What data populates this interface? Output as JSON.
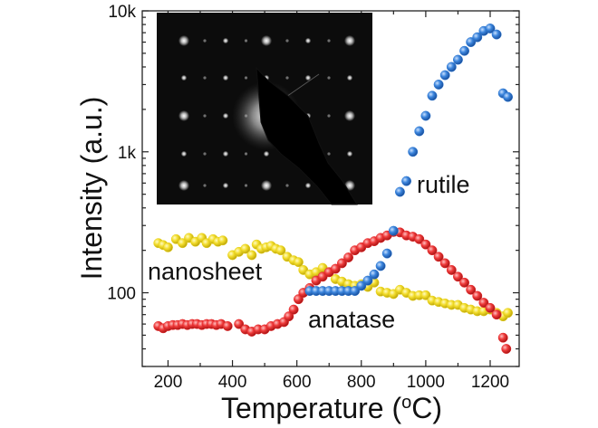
{
  "chart_data": {
    "type": "scatter",
    "title": "",
    "xlabel": "Temperature (",
    "xlabel_sup": "o",
    "xlabel_end": "C)",
    "ylabel": "Intensity (a.u.)",
    "yscale": "log",
    "xlim": [
      120,
      1290
    ],
    "ylim": [
      30,
      10000
    ],
    "x_ticks": [
      200,
      400,
      600,
      800,
      1000,
      1200
    ],
    "x_tick_labels": [
      "200",
      "400",
      "600",
      "800",
      "1000",
      "1200"
    ],
    "y_ticks": [
      100,
      1000,
      10000
    ],
    "y_tick_labels": [
      "100",
      "1k",
      "10k"
    ],
    "grid": false,
    "inset": "electron diffraction pattern (dark square, bright spot lattice)",
    "series": [
      {
        "name": "nanosheet",
        "color": "#e8d21c",
        "x": [
          170,
          185,
          200,
          225,
          245,
          265,
          285,
          305,
          320,
          340,
          355,
          370,
          400,
          420,
          440,
          460,
          475,
          490,
          505,
          520,
          535,
          550,
          570,
          590,
          605,
          620,
          640,
          660,
          680,
          700,
          720,
          740,
          760,
          780,
          800,
          820,
          840,
          860,
          880,
          900,
          920,
          940,
          960,
          980,
          1000,
          1020,
          1040,
          1060,
          1080,
          1100,
          1120,
          1140,
          1160,
          1180,
          1200,
          1220,
          1240,
          1255
        ],
        "y": [
          225,
          218,
          210,
          240,
          225,
          245,
          230,
          245,
          225,
          240,
          230,
          235,
          185,
          195,
          205,
          185,
          220,
          205,
          210,
          215,
          205,
          200,
          180,
          170,
          165,
          145,
          135,
          140,
          150,
          140,
          125,
          120,
          115,
          112,
          115,
          110,
          118,
          102,
          100,
          98,
          105,
          100,
          95,
          96,
          96,
          88,
          86,
          84,
          82,
          82,
          78,
          76,
          74,
          74,
          76,
          72,
          68,
          72
        ]
      },
      {
        "name": "anatase",
        "color": "#e8282a",
        "x": [
          170,
          185,
          200,
          215,
          230,
          245,
          260,
          275,
          290,
          305,
          320,
          335,
          350,
          365,
          385,
          420,
          440,
          460,
          480,
          500,
          520,
          540,
          560,
          575,
          590,
          605,
          620,
          640,
          660,
          680,
          700,
          720,
          740,
          760,
          780,
          800,
          820,
          840,
          860,
          880,
          900,
          920,
          940,
          960,
          980,
          1000,
          1020,
          1040,
          1060,
          1080,
          1100,
          1120,
          1140,
          1160,
          1180,
          1200,
          1220,
          1240,
          1250
        ],
        "y": [
          58,
          56,
          58,
          59,
          59,
          60,
          59,
          60,
          60,
          59,
          60,
          60,
          59,
          60,
          58,
          60,
          55,
          53,
          55,
          55,
          58,
          60,
          62,
          68,
          76,
          90,
          100,
          108,
          122,
          130,
          140,
          148,
          162,
          178,
          200,
          210,
          225,
          232,
          245,
          255,
          270,
          268,
          255,
          250,
          240,
          220,
          200,
          180,
          162,
          145,
          130,
          118,
          105,
          95,
          85,
          78,
          70,
          48,
          40
        ]
      },
      {
        "name": "rutile",
        "color": "#2e78d2",
        "x": [
          640,
          660,
          680,
          700,
          720,
          740,
          760,
          780,
          800,
          820,
          840,
          860,
          880,
          900,
          920,
          940,
          960,
          980,
          1000,
          1020,
          1040,
          1060,
          1080,
          1100,
          1120,
          1140,
          1160,
          1180,
          1200,
          1220,
          1240,
          1255
        ],
        "y": [
          103,
          103,
          103,
          103,
          103,
          103,
          103,
          103,
          112,
          122,
          135,
          155,
          190,
          275,
          520,
          620,
          1000,
          1400,
          1800,
          2500,
          3000,
          3500,
          4000,
          4500,
          5200,
          6000,
          6500,
          7200,
          7500,
          6800,
          2600,
          2450
        ]
      }
    ],
    "annotations": [
      {
        "text": "rutile",
        "color": "#2e78d2"
      },
      {
        "text": "nanosheet",
        "color": "#e8c91c"
      },
      {
        "text": "anatase",
        "color": "#e8282a"
      }
    ]
  }
}
